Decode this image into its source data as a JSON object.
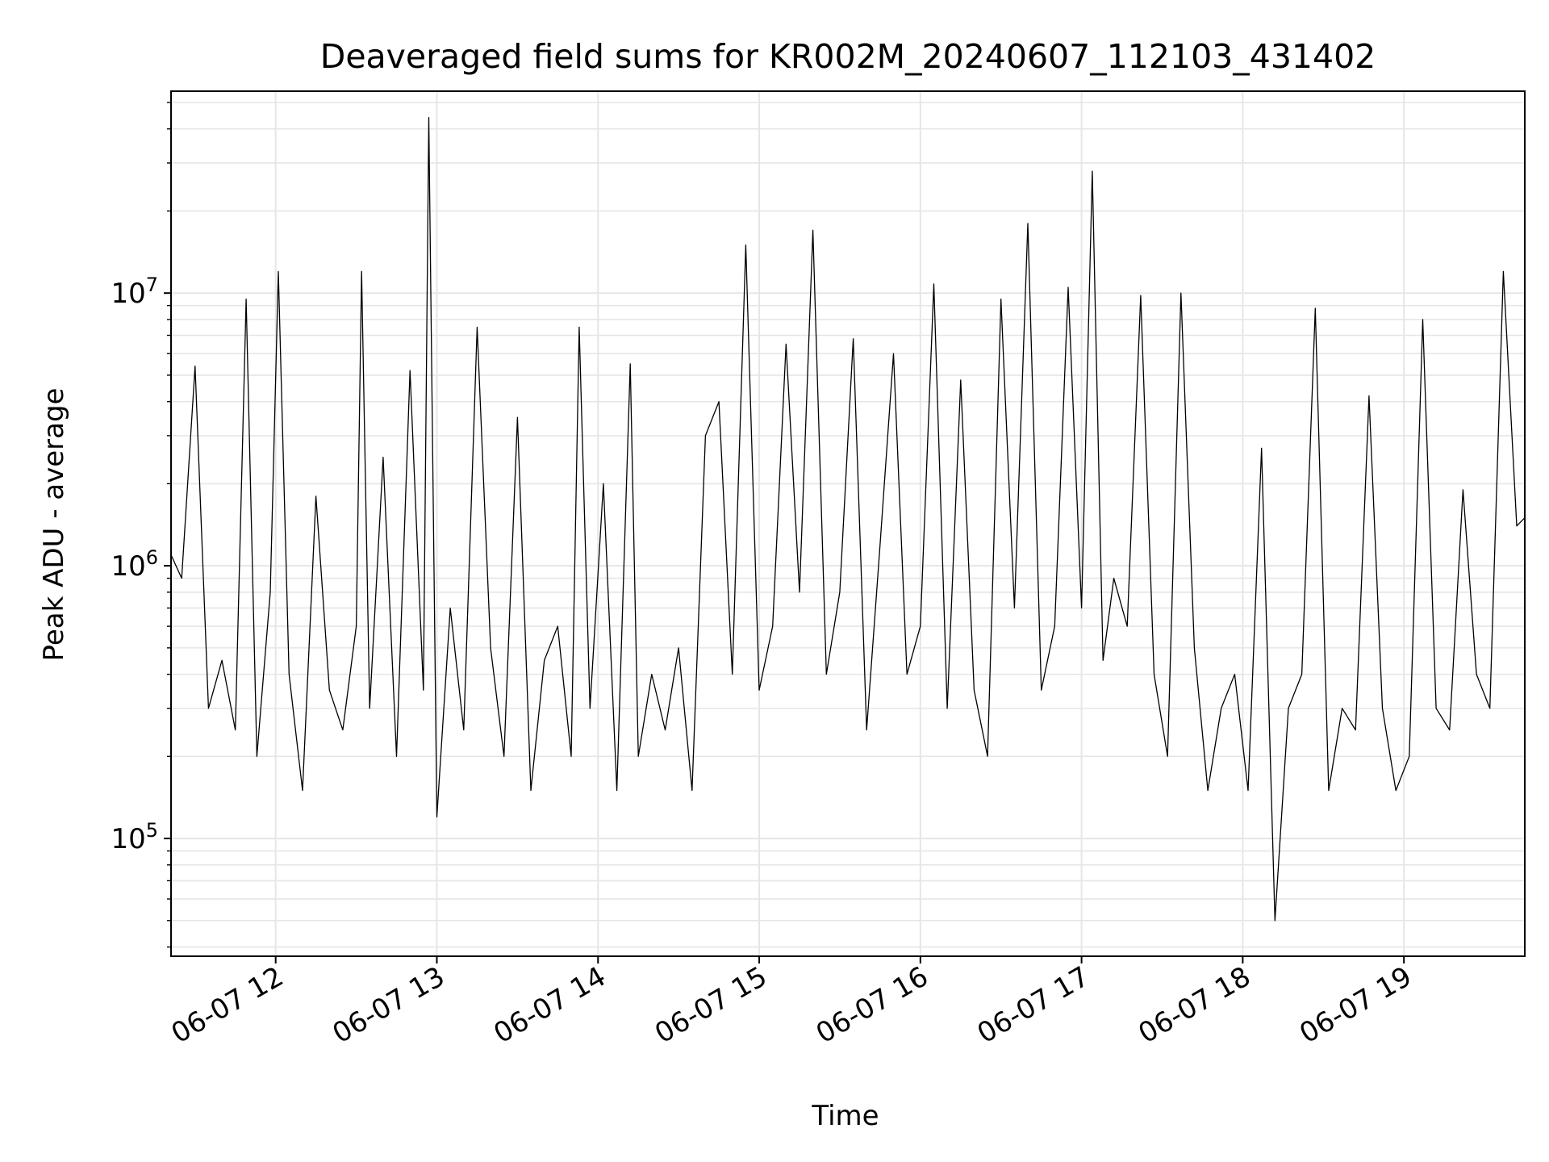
{
  "chart_data": {
    "type": "line",
    "title": "Deaveraged field sums for KR002M_20240607_112103_431402",
    "xlabel": "Time",
    "ylabel": "Peak ADU - average",
    "yscale": "log",
    "ylim": [
      37000,
      55000000
    ],
    "xlim": [
      "2024-06-07T11:21:03",
      "2024-06-07T19:45:00"
    ],
    "x_ticks": [
      "2024-06-07T12:00",
      "2024-06-07T13:00",
      "2024-06-07T14:00",
      "2024-06-07T15:00",
      "2024-06-07T16:00",
      "2024-06-07T17:00",
      "2024-06-07T18:00",
      "2024-06-07T19:00"
    ],
    "x_tick_labels": [
      "06-07 12",
      "06-07 13",
      "06-07 14",
      "06-07 15",
      "06-07 16",
      "06-07 17",
      "06-07 18",
      "06-07 19"
    ],
    "y_ticks": [
      100000,
      1000000,
      10000000
    ],
    "y_tick_labels": [
      {
        "base": "10",
        "exp": "5"
      },
      {
        "base": "10",
        "exp": "6"
      },
      {
        "base": "10",
        "exp": "7"
      }
    ],
    "grid": true,
    "line_color": "#000000",
    "series": [
      {
        "x": [
          "2024-06-07T11:21",
          "2024-06-07T11:25",
          "2024-06-07T11:30",
          "2024-06-07T11:35",
          "2024-06-07T11:40",
          "2024-06-07T11:45",
          "2024-06-07T11:49",
          "2024-06-07T11:53",
          "2024-06-07T11:58",
          "2024-06-07T12:01",
          "2024-06-07T12:05",
          "2024-06-07T12:10",
          "2024-06-07T12:15",
          "2024-06-07T12:20",
          "2024-06-07T12:25",
          "2024-06-07T12:30",
          "2024-06-07T12:32",
          "2024-06-07T12:35",
          "2024-06-07T12:40",
          "2024-06-07T12:45",
          "2024-06-07T12:50",
          "2024-06-07T12:55",
          "2024-06-07T12:57",
          "2024-06-07T13:00",
          "2024-06-07T13:05",
          "2024-06-07T13:10",
          "2024-06-07T13:15",
          "2024-06-07T13:20",
          "2024-06-07T13:25",
          "2024-06-07T13:30",
          "2024-06-07T13:35",
          "2024-06-07T13:40",
          "2024-06-07T13:45",
          "2024-06-07T13:50",
          "2024-06-07T13:53",
          "2024-06-07T13:57",
          "2024-06-07T14:02",
          "2024-06-07T14:07",
          "2024-06-07T14:12",
          "2024-06-07T14:15",
          "2024-06-07T14:20",
          "2024-06-07T14:25",
          "2024-06-07T14:30",
          "2024-06-07T14:35",
          "2024-06-07T14:40",
          "2024-06-07T14:45",
          "2024-06-07T14:50",
          "2024-06-07T14:55",
          "2024-06-07T15:00",
          "2024-06-07T15:05",
          "2024-06-07T15:10",
          "2024-06-07T15:15",
          "2024-06-07T15:20",
          "2024-06-07T15:25",
          "2024-06-07T15:30",
          "2024-06-07T15:35",
          "2024-06-07T15:40",
          "2024-06-07T15:45",
          "2024-06-07T15:50",
          "2024-06-07T15:55",
          "2024-06-07T16:00",
          "2024-06-07T16:05",
          "2024-06-07T16:10",
          "2024-06-07T16:15",
          "2024-06-07T16:20",
          "2024-06-07T16:25",
          "2024-06-07T16:30",
          "2024-06-07T16:35",
          "2024-06-07T16:40",
          "2024-06-07T16:45",
          "2024-06-07T16:50",
          "2024-06-07T16:55",
          "2024-06-07T17:00",
          "2024-06-07T17:04",
          "2024-06-07T17:08",
          "2024-06-07T17:12",
          "2024-06-07T17:17",
          "2024-06-07T17:22",
          "2024-06-07T17:27",
          "2024-06-07T17:32",
          "2024-06-07T17:37",
          "2024-06-07T17:42",
          "2024-06-07T17:47",
          "2024-06-07T17:52",
          "2024-06-07T17:57",
          "2024-06-07T18:02",
          "2024-06-07T18:07",
          "2024-06-07T18:12",
          "2024-06-07T18:17",
          "2024-06-07T18:22",
          "2024-06-07T18:27",
          "2024-06-07T18:32",
          "2024-06-07T18:37",
          "2024-06-07T18:42",
          "2024-06-07T18:47",
          "2024-06-07T18:52",
          "2024-06-07T18:57",
          "2024-06-07T19:02",
          "2024-06-07T19:07",
          "2024-06-07T19:12",
          "2024-06-07T19:17",
          "2024-06-07T19:22",
          "2024-06-07T19:27",
          "2024-06-07T19:32",
          "2024-06-07T19:37",
          "2024-06-07T19:42",
          "2024-06-07T19:45"
        ],
        "values": [
          1100000,
          900000,
          5400000,
          300000,
          450000,
          250000,
          9500000,
          200000,
          800000,
          12000000,
          400000,
          150000,
          1800000,
          350000,
          250000,
          600000,
          12000000,
          300000,
          2500000,
          200000,
          5200000,
          350000,
          44000000,
          120000,
          700000,
          250000,
          7500000,
          500000,
          200000,
          3500000,
          150000,
          450000,
          600000,
          200000,
          7500000,
          300000,
          2000000,
          150000,
          5500000,
          200000,
          400000,
          250000,
          500000,
          150000,
          3000000,
          4000000,
          400000,
          15000000,
          350000,
          600000,
          6500000,
          800000,
          17000000,
          400000,
          800000,
          6800000,
          250000,
          1200000,
          6000000,
          400000,
          600000,
          10800000,
          300000,
          4800000,
          350000,
          200000,
          9500000,
          700000,
          18000000,
          350000,
          600000,
          10500000,
          700000,
          28000000,
          450000,
          900000,
          600000,
          9800000,
          400000,
          200000,
          10000000,
          500000,
          150000,
          300000,
          400000,
          150000,
          2700000,
          50000,
          300000,
          400000,
          8800000,
          150000,
          300000,
          250000,
          4200000,
          300000,
          150000,
          200000,
          8000000,
          300000,
          250000,
          1900000,
          400000,
          300000,
          12000000,
          1400000,
          1500000
        ]
      }
    ]
  }
}
